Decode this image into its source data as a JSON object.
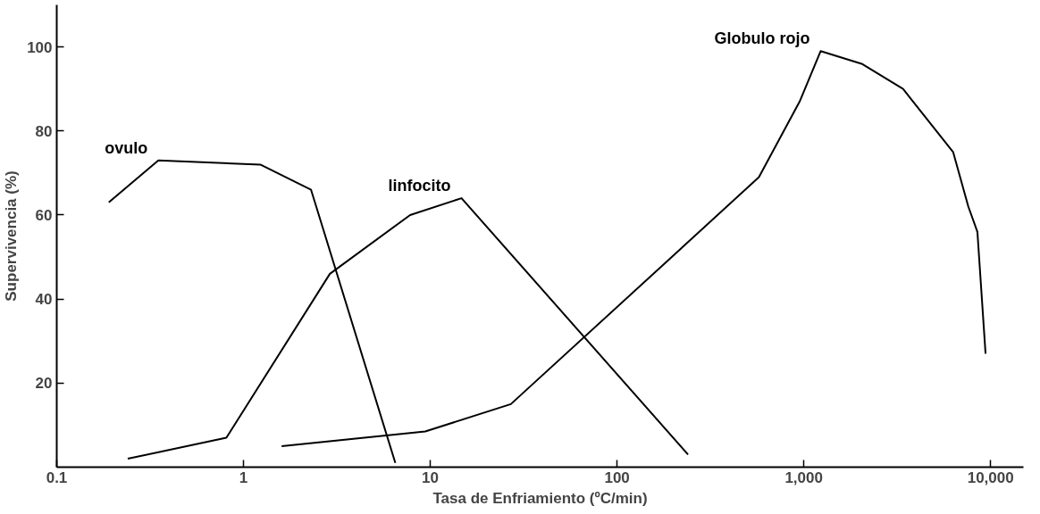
{
  "chart_data": {
    "type": "line",
    "xlabel": "Tasa de Enfriamiento (ºC/min)",
    "ylabel": "Supervivencia (%)",
    "log": "x",
    "xlim": [
      0.1,
      15000
    ],
    "ylim": [
      0,
      110
    ],
    "xticks": [
      {
        "value": 0.1,
        "label": "0.1"
      },
      1,
      10,
      100,
      {
        "value": 1000,
        "label": "1,000"
      },
      {
        "value": 10000,
        "label": "10,000"
      }
    ],
    "yticks": [
      20,
      40,
      60,
      80,
      100
    ],
    "grid": false,
    "marker": "none",
    "line_style": "solid",
    "series": [
      {
        "name": "ovulo",
        "color": "#000000",
        "x": [
          0.19,
          0.35,
          1.23,
          2.3,
          6.5
        ],
        "values": [
          63,
          73,
          72,
          66,
          1
        ]
      },
      {
        "name": "linfocito",
        "color": "#000000",
        "x": [
          0.24,
          0.81,
          2.9,
          7.8,
          14.7,
          240
        ],
        "values": [
          2,
          7,
          46,
          60,
          64,
          3
        ]
      },
      {
        "name": "Globulo rojo",
        "color": "#000000",
        "x": [
          1.6,
          9.4,
          27,
          575,
          950,
          1230,
          2040,
          3400,
          6300,
          7600,
          8500,
          9400
        ],
        "values": [
          5,
          8.5,
          15,
          69,
          87,
          99,
          96,
          90,
          75,
          62,
          56,
          27
        ]
      }
    ]
  }
}
